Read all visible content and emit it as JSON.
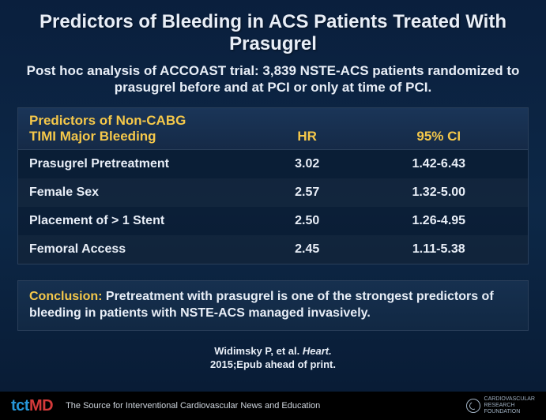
{
  "title": "Predictors of Bleeding in ACS Patients Treated With Prasugrel",
  "subtitle": "Post hoc analysis of ACCOAST trial: 3,839 NSTE-ACS patients randomized to prasugrel before and at PCI or only at time of PCI.",
  "table": {
    "header": {
      "left_line1": "Predictors of Non-CABG",
      "left_line2": "TIMI Major Bleeding",
      "mid": "HR",
      "right": "95% CI"
    },
    "rows": [
      {
        "predictor": "Prasugrel Pretreatment",
        "hr": "3.02",
        "ci": "1.42-6.43"
      },
      {
        "predictor": "Female Sex",
        "hr": "2.57",
        "ci": "1.32-5.00"
      },
      {
        "predictor": "Placement of > 1 Stent",
        "hr": "2.50",
        "ci": "1.26-4.95"
      },
      {
        "predictor": "Femoral Access",
        "hr": "2.45",
        "ci": "1.11-5.38"
      }
    ],
    "colors": {
      "header_text": "#f5c84a",
      "body_text": "#e8eef7",
      "border": "#2a3f5a",
      "header_bg_top": "#1a3558",
      "header_bg_bot": "#152a47"
    },
    "fontsize": {
      "header": 17,
      "body": 16
    },
    "col_widths_pct": [
      46,
      22,
      32
    ]
  },
  "conclusion": {
    "label": "Conclusion:",
    "text": "Pretreatment with prasugrel is one of the strongest predictors of bleeding in patients with NSTE-ACS managed invasively.",
    "label_color": "#f5c84a",
    "text_color": "#e8eef7",
    "fontsize": 16
  },
  "citation": {
    "authors": "Widimsky P, et al.",
    "journal": "Heart.",
    "year_info": "2015;Epub ahead of print.",
    "fontsize": 13
  },
  "footer": {
    "logo_tct": "tct",
    "logo_md": "MD",
    "tagline": "The Source for Interventional Cardiovascular News and Education",
    "org_line1": "CARDIOVASCULAR",
    "org_line2": "RESEARCH",
    "org_line3": "FOUNDATION",
    "colors": {
      "bg": "#000000",
      "tct": "#2696d9",
      "md": "#d43a3a",
      "tagline": "#cfd6de",
      "org": "#9fb0c2"
    }
  },
  "background": {
    "gradient_top": "#0a1f3d",
    "gradient_mid": "#0d2847",
    "gradient_bot": "#081a33"
  }
}
